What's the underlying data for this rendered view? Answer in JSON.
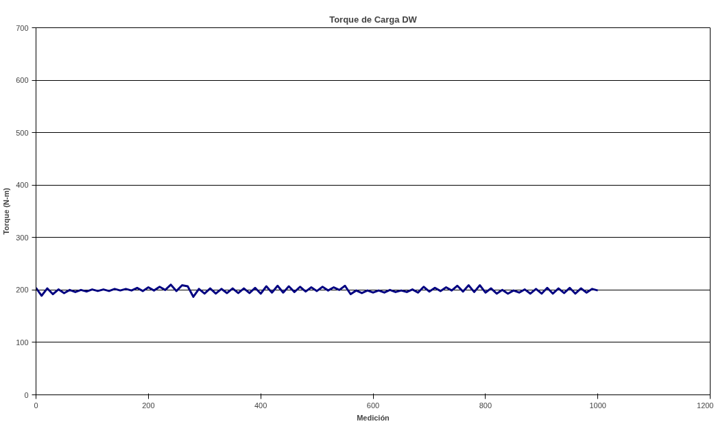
{
  "chart_data": {
    "type": "line",
    "title": "Torque de Carga DW",
    "xlabel": "Medición",
    "ylabel": "Torque (N-m)",
    "x": [
      0,
      10,
      20,
      30,
      40,
      50,
      60,
      70,
      80,
      90,
      100,
      110,
      120,
      130,
      140,
      150,
      160,
      170,
      180,
      190,
      200,
      210,
      220,
      230,
      240,
      250,
      260,
      270,
      280,
      290,
      300,
      310,
      320,
      330,
      340,
      350,
      360,
      370,
      380,
      390,
      400,
      410,
      420,
      430,
      440,
      450,
      460,
      470,
      480,
      490,
      500,
      510,
      520,
      530,
      540,
      550,
      560,
      570,
      580,
      590,
      600,
      610,
      620,
      630,
      640,
      650,
      660,
      670,
      680,
      690,
      700,
      710,
      720,
      730,
      740,
      750,
      760,
      770,
      780,
      790,
      800,
      810,
      820,
      830,
      840,
      850,
      860,
      870,
      880,
      890,
      900,
      910,
      920,
      930,
      940,
      950,
      960,
      970,
      980,
      990,
      1000
    ],
    "series": [
      {
        "color": "#000080",
        "values": [
          204,
          189,
          203,
          192,
          201,
          194,
          200,
          196,
          200,
          197,
          201,
          198,
          201,
          198,
          202,
          199,
          202,
          199,
          204,
          198,
          205,
          199,
          206,
          200,
          210,
          198,
          209,
          207,
          187,
          202,
          193,
          203,
          193,
          202,
          194,
          203,
          194,
          203,
          194,
          204,
          193,
          207,
          195,
          208,
          195,
          207,
          196,
          206,
          197,
          205,
          198,
          206,
          199,
          205,
          200,
          208,
          192,
          199,
          194,
          199,
          195,
          199,
          195,
          200,
          196,
          199,
          196,
          201,
          195,
          206,
          197,
          204,
          198,
          205,
          199,
          208,
          197,
          209,
          196,
          209,
          195,
          203,
          193,
          200,
          193,
          199,
          195,
          201,
          193,
          202,
          193,
          204,
          193,
          203,
          194,
          204,
          193,
          203,
          195,
          202,
          199
        ]
      }
    ],
    "xlim": [
      0,
      1200
    ],
    "ylim": [
      0,
      700
    ],
    "xticks": [
      0,
      200,
      400,
      600,
      800,
      1000,
      1200
    ],
    "yticks": [
      0,
      100,
      200,
      300,
      400,
      500,
      600,
      700
    ],
    "grid": "y",
    "line_style": "solid",
    "marker": "none"
  }
}
